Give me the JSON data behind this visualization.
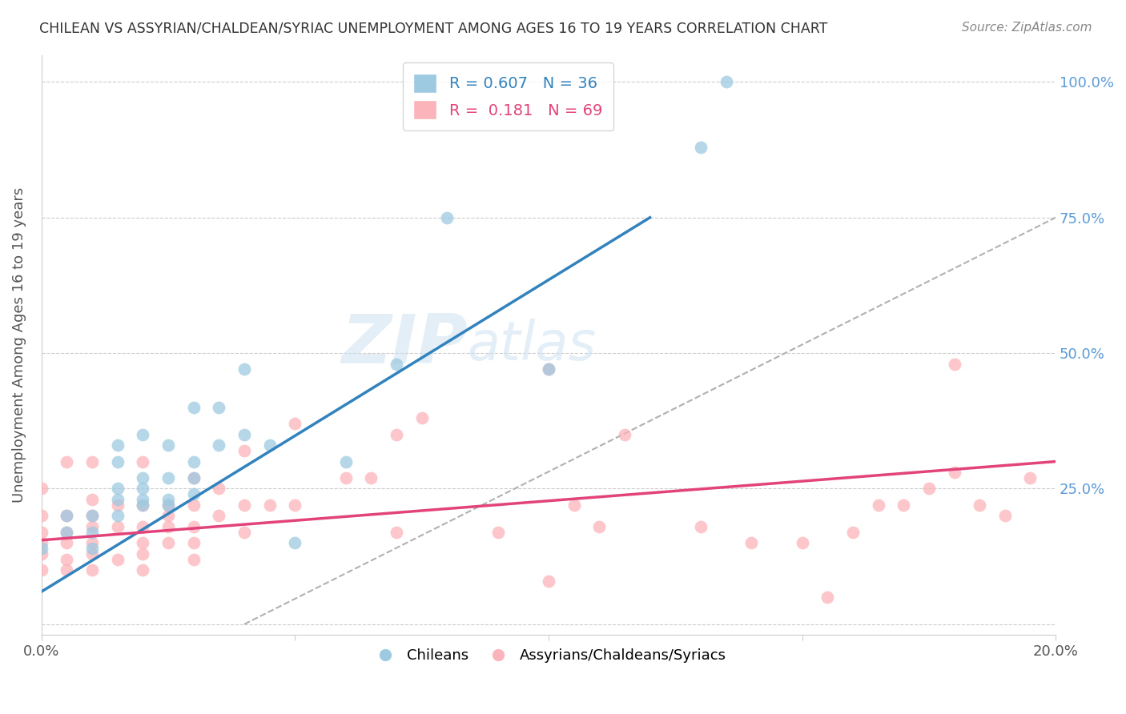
{
  "title": "CHILEAN VS ASSYRIAN/CHALDEAN/SYRIAC UNEMPLOYMENT AMONG AGES 16 TO 19 YEARS CORRELATION CHART",
  "source": "Source: ZipAtlas.com",
  "ylabel": "Unemployment Among Ages 16 to 19 years",
  "xlim": [
    0.0,
    0.2
  ],
  "ylim": [
    -0.02,
    1.05
  ],
  "blue_R": 0.607,
  "blue_N": 36,
  "pink_R": 0.181,
  "pink_N": 69,
  "blue_color": "#9ecae1",
  "pink_color": "#fbb4b9",
  "blue_line_color": "#3182bd",
  "pink_line_color": "#e2437a",
  "grid_color": "#cccccc",
  "blue_line_x0": 0.0,
  "blue_line_y0": 0.06,
  "blue_line_x1": 0.12,
  "blue_line_y1": 0.75,
  "pink_line_x0": 0.0,
  "pink_line_y0": 0.155,
  "pink_line_x1": 0.2,
  "pink_line_y1": 0.3,
  "gray_line_x0": 0.04,
  "gray_line_y0": 0.0,
  "gray_line_x1": 0.2,
  "gray_line_y1": 0.75,
  "blue_scatter_x": [
    0.0,
    0.005,
    0.005,
    0.01,
    0.01,
    0.01,
    0.015,
    0.015,
    0.015,
    0.015,
    0.015,
    0.02,
    0.02,
    0.02,
    0.02,
    0.02,
    0.025,
    0.025,
    0.025,
    0.025,
    0.03,
    0.03,
    0.03,
    0.03,
    0.035,
    0.035,
    0.04,
    0.04,
    0.045,
    0.05,
    0.06,
    0.07,
    0.08,
    0.1,
    0.13,
    0.135
  ],
  "blue_scatter_y": [
    0.14,
    0.17,
    0.2,
    0.14,
    0.17,
    0.2,
    0.2,
    0.23,
    0.25,
    0.3,
    0.33,
    0.22,
    0.23,
    0.25,
    0.27,
    0.35,
    0.22,
    0.23,
    0.27,
    0.33,
    0.24,
    0.27,
    0.3,
    0.4,
    0.33,
    0.4,
    0.35,
    0.47,
    0.33,
    0.15,
    0.3,
    0.48,
    0.75,
    0.47,
    0.88,
    1.0
  ],
  "pink_scatter_x": [
    0.0,
    0.0,
    0.0,
    0.0,
    0.0,
    0.0,
    0.005,
    0.005,
    0.005,
    0.005,
    0.005,
    0.005,
    0.01,
    0.01,
    0.01,
    0.01,
    0.01,
    0.01,
    0.01,
    0.015,
    0.015,
    0.015,
    0.02,
    0.02,
    0.02,
    0.02,
    0.02,
    0.02,
    0.025,
    0.025,
    0.025,
    0.025,
    0.03,
    0.03,
    0.03,
    0.03,
    0.03,
    0.035,
    0.035,
    0.04,
    0.04,
    0.04,
    0.045,
    0.05,
    0.05,
    0.06,
    0.065,
    0.07,
    0.07,
    0.075,
    0.09,
    0.1,
    0.1,
    0.105,
    0.11,
    0.115,
    0.13,
    0.14,
    0.15,
    0.155,
    0.16,
    0.165,
    0.17,
    0.175,
    0.18,
    0.18,
    0.185,
    0.19,
    0.195
  ],
  "pink_scatter_y": [
    0.1,
    0.13,
    0.15,
    0.17,
    0.2,
    0.25,
    0.1,
    0.12,
    0.15,
    0.17,
    0.2,
    0.3,
    0.1,
    0.13,
    0.15,
    0.18,
    0.2,
    0.23,
    0.3,
    0.12,
    0.18,
    0.22,
    0.1,
    0.13,
    0.15,
    0.18,
    0.22,
    0.3,
    0.15,
    0.18,
    0.2,
    0.22,
    0.12,
    0.15,
    0.18,
    0.22,
    0.27,
    0.2,
    0.25,
    0.17,
    0.22,
    0.32,
    0.22,
    0.22,
    0.37,
    0.27,
    0.27,
    0.17,
    0.35,
    0.38,
    0.17,
    0.08,
    0.47,
    0.22,
    0.18,
    0.35,
    0.18,
    0.15,
    0.15,
    0.05,
    0.17,
    0.22,
    0.22,
    0.25,
    0.28,
    0.48,
    0.22,
    0.2,
    0.27
  ]
}
